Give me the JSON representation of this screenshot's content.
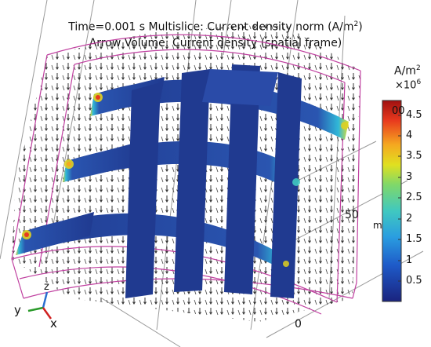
{
  "title": {
    "line1_prefix": "Time=0.001 s   Multislice: Current density norm (A/m",
    "line1_sup": "2",
    "line1_suffix": ")",
    "line2": "Arrow Volume: Current density (spatial frame)"
  },
  "colorbar": {
    "unit_prefix": "A/m",
    "unit_sup": "2",
    "scale_prefix": "×10",
    "scale_sup": "6",
    "ticks": [
      "4.5",
      "4",
      "3.5",
      "3",
      "2.5",
      "2",
      "1.5",
      "1",
      "0.5"
    ],
    "partial_label": "00",
    "colors": [
      "#1a237e",
      "#1e5ac8",
      "#2a9de0",
      "#40c8c0",
      "#7fd86a",
      "#e0e020",
      "#f5a820",
      "#e83a1e",
      "#a01010"
    ]
  },
  "axes": {
    "label_50": "50",
    "label_0": "0",
    "unit_fragment": "m"
  },
  "triad": {
    "z": "z",
    "y": "y",
    "x": "x"
  }
}
